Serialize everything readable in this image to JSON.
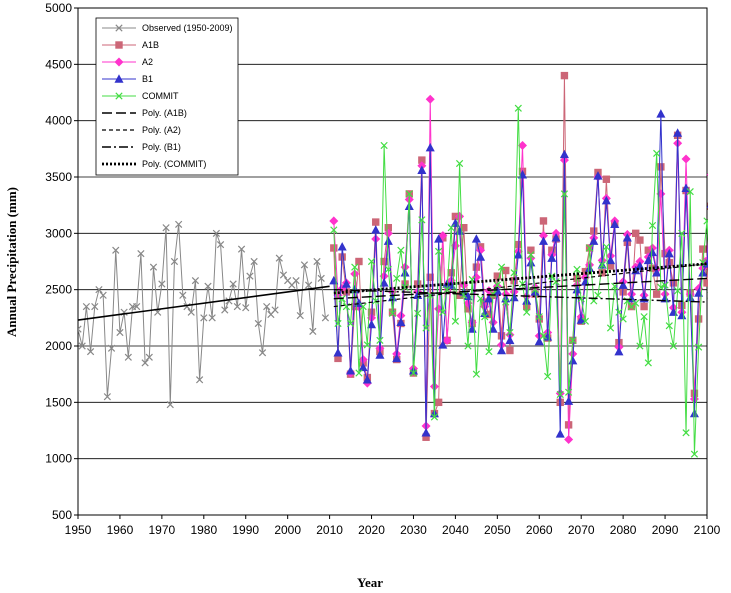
{
  "chart_data": {
    "type": "line",
    "xlabel": "Year",
    "ylabel": "Annual Precipitation (mm)",
    "xlim": [
      1950,
      2100
    ],
    "ylim": [
      500,
      5000
    ],
    "x_ticks": [
      "1950",
      "1960",
      "1970",
      "1980",
      "1990",
      "2000",
      "2010",
      "2020",
      "2030",
      "2040",
      "2050",
      "2060",
      "2070",
      "2080",
      "2090",
      "2100"
    ],
    "y_ticks": [
      "500",
      "1000",
      "1500",
      "2000",
      "2500",
      "3000",
      "3500",
      "4000",
      "4500",
      "5000"
    ],
    "grid": "horizontal",
    "legend_position": "top-left",
    "series": [
      {
        "name": "Observed (1950-2009)",
        "color": "#888888",
        "marker": "x",
        "x_start": 1950,
        "values": [
          2150,
          2000,
          2350,
          1950,
          2350,
          2500,
          2450,
          1550,
          1980,
          2850,
          2120,
          2300,
          1900,
          2350,
          2350,
          2820,
          1850,
          1900,
          2700,
          2300,
          2550,
          3050,
          1480,
          2750,
          3080,
          2450,
          2350,
          2300,
          2580,
          1700,
          2250,
          2530,
          2250,
          3000,
          2900,
          2320,
          2400,
          2550,
          2350,
          2860,
          2340,
          2620,
          2750,
          2200,
          1940,
          2350,
          2280,
          2320,
          2780,
          2630,
          2580,
          2540,
          2580,
          2270,
          2720,
          2540,
          2130,
          2750,
          2600,
          2250
        ]
      },
      {
        "name": "A1B",
        "color": "#CC6677",
        "marker": "square",
        "x_start": 2011,
        "values": [
          2870,
          1890,
          2790,
          2480,
          1750,
          2350,
          2750,
          1850,
          1720,
          2300,
          3100,
          1950,
          2750,
          3050,
          2300,
          1880,
          2200,
          2550,
          3350,
          1760,
          2550,
          3650,
          1190,
          2610,
          1400,
          1500,
          2960,
          2050,
          2650,
          3150,
          2450,
          3050,
          2330,
          2200,
          2700,
          2880,
          2390,
          2280,
          2450,
          2620,
          2090,
          2670,
          1960,
          2580,
          2900,
          3550,
          2350,
          2850,
          2460,
          2240,
          3110,
          2070,
          2850,
          2950,
          1500,
          4400,
          1300,
          2050,
          2600,
          2220,
          2660,
          2870,
          3020,
          3540,
          2650,
          3480,
          2710,
          3080,
          2030,
          2480,
          2920,
          2350,
          3000,
          2940,
          2350,
          2850,
          2690,
          2460,
          3590,
          2820,
          2740,
          2560,
          3870,
          2360,
          3380,
          2470,
          1580,
          2240,
          2860,
          2560,
          3240,
          2380,
          2550,
          2250
        ]
      },
      {
        "name": "A2",
        "color": "#FF33CC",
        "marker": "diamond",
        "x_start": 2011,
        "values": [
          3110,
          2450,
          2510,
          2560,
          1760,
          2640,
          2350,
          1880,
          1670,
          2250,
          2950,
          1980,
          2620,
          3000,
          2480,
          1930,
          2270,
          2700,
          3300,
          1800,
          2480,
          3600,
          1290,
          4190,
          1640,
          2330,
          2980,
          2050,
          2580,
          2890,
          3150,
          2540,
          2380,
          2210,
          2610,
          2850,
          2350,
          2490,
          2210,
          2530,
          2010,
          2460,
          2100,
          2480,
          2840,
          3780,
          2440,
          2780,
          2520,
          2090,
          2980,
          2120,
          2810,
          3000,
          1580,
          3650,
          1170,
          1930,
          2540,
          2260,
          2610,
          2720,
          2960,
          3500,
          2760,
          3310,
          2800,
          3110,
          1990,
          2570,
          2990,
          2460,
          2700,
          2750,
          2450,
          2790,
          2870,
          2680,
          3350,
          2460,
          2850,
          2340,
          3800,
          2300,
          3660,
          2460,
          1530,
          2510,
          2690,
          2760,
          3520,
          2450,
          2750,
          2390
        ]
      },
      {
        "name": "B1",
        "color": "#3333CC",
        "marker": "triangle",
        "x_start": 2011,
        "values": [
          2580,
          1940,
          2880,
          2550,
          1780,
          2500,
          2380,
          1810,
          1700,
          2190,
          3030,
          1920,
          2560,
          2930,
          2430,
          1890,
          2210,
          2650,
          3240,
          1780,
          2450,
          3560,
          1230,
          3760,
          1400,
          2950,
          2010,
          2550,
          2540,
          3090,
          3020,
          2480,
          2440,
          2150,
          2950,
          2790,
          2290,
          2420,
          2150,
          2490,
          1960,
          2420,
          2050,
          2430,
          2810,
          3520,
          2400,
          2740,
          2480,
          2040,
          2930,
          2080,
          2780,
          2960,
          1220,
          3700,
          1510,
          1870,
          2500,
          2230,
          2570,
          2690,
          2930,
          3510,
          2720,
          3290,
          2760,
          3080,
          1950,
          2540,
          2960,
          2420,
          2670,
          2710,
          2420,
          2760,
          2830,
          2650,
          4060,
          2420,
          2820,
          2300,
          3890,
          2270,
          3400,
          2430,
          1400,
          2470,
          2650,
          2730,
          3260,
          2430,
          2720,
          2330
        ]
      },
      {
        "name": "COMMIT",
        "color": "#44DD44",
        "marker": "x",
        "x_start": 2011,
        "values": [
          3030,
          2200,
          2420,
          2350,
          2200,
          2700,
          1760,
          2350,
          2010,
          2750,
          2400,
          2050,
          3780,
          2680,
          2290,
          2600,
          2850,
          2520,
          3350,
          1760,
          2290,
          3120,
          2160,
          2450,
          1370,
          2840,
          2300,
          2500,
          3050,
          2220,
          3620,
          2450,
          2000,
          2590,
          1750,
          2420,
          2260,
          1950,
          2460,
          2540,
          2700,
          2390,
          2120,
          2650,
          4110,
          2550,
          2300,
          2810,
          2500,
          2260,
          2090,
          1730,
          2620,
          2570,
          1570,
          3350,
          1590,
          2050,
          2680,
          2420,
          2220,
          2870,
          2400,
          2450,
          2720,
          2880,
          2160,
          2530,
          2300,
          2240,
          2400,
          2350,
          2380,
          2000,
          2260,
          1850,
          3070,
          3710,
          2520,
          2540,
          2180,
          2000,
          2490,
          3000,
          1230,
          3370,
          1040,
          1990,
          2740,
          3110,
          2450,
          2350,
          2520,
          1920
        ]
      },
      {
        "name": "Poly. (A1B)",
        "color": "#000000",
        "style": "long-dash",
        "x_start": 2011,
        "x_end": 2100,
        "values": [
          2420,
          2600
        ]
      },
      {
        "name": "Poly. (A2)",
        "color": "#000000",
        "style": "short-dash",
        "x_start": 2011,
        "x_end": 2100,
        "values": [
          2350,
          2730
        ]
      },
      {
        "name": "Poly. (B1)",
        "color": "#000000",
        "style": "dash-dot",
        "x_start": 2011,
        "x_end": 2100,
        "values": [
          2500,
          2390
        ]
      },
      {
        "name": "Poly. (COMMIT)",
        "color": "#000000",
        "style": "dotted-bold",
        "x_start": 2011,
        "x_end": 2100,
        "values": [
          2470,
          2730
        ]
      },
      {
        "name": "",
        "color": "#000000",
        "style": "solid",
        "x_start": 1950,
        "x_end": 2010,
        "values": [
          2230,
          2530
        ]
      }
    ]
  }
}
